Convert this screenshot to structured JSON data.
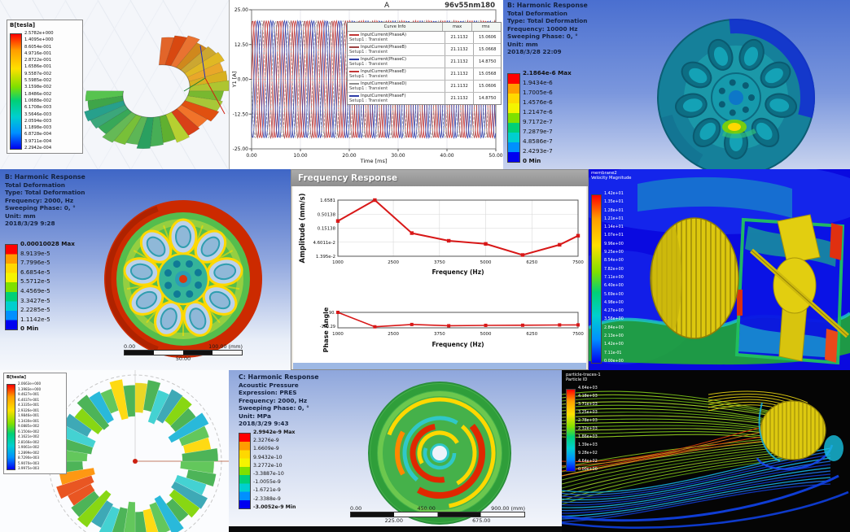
{
  "panels": {
    "maxwell_torus": {
      "legend_title": "B[tesla]",
      "legend_values": [
        "2.5782e+000",
        "1.4095e+000",
        "8.6054e-001",
        "4.9716e-001",
        "2.8722e-001",
        "1.6586e-001",
        "9.5587e-002",
        "5.5985e-002",
        "3.1598e-002",
        "1.8486e-002",
        "1.0688e-002",
        "6.1708e-003",
        "3.5646e-003",
        "2.0594e-003",
        "1.1898e-003",
        "6.8728e-004",
        "3.9711e-004",
        "2.2942e-004"
      ]
    },
    "transient_plot": {
      "title": "A",
      "subtitle": "96v55nm180",
      "xlabel": "Time [ms]",
      "ylabel": "Y1 [A]",
      "xtick_labels": [
        "0.00",
        "10.00",
        "20.00",
        "30.00",
        "40.00",
        "50.00"
      ],
      "ytick_labels": [
        "25.00",
        "12.50",
        "0.00",
        "-12.50",
        "-25.00"
      ],
      "legend": {
        "header": [
          "Curve Info",
          "max",
          "rms"
        ],
        "rows": [
          {
            "name": "InputCurrent(PhaseA)",
            "setup": "Setup1 : Transient",
            "max": "21.1132",
            "rms": "15.0606",
            "color": "#c23535",
            "dash": false
          },
          {
            "name": "InputCurrent(PhaseB)",
            "setup": "Setup1 : Transient",
            "max": "21.1132",
            "rms": "15.0668",
            "color": "#9e4444",
            "dash": false
          },
          {
            "name": "InputCurrent(PhaseC)",
            "setup": "Setup1 : Transient",
            "max": "21.1132",
            "rms": "14.8750",
            "color": "#2f3da8",
            "dash": false
          },
          {
            "name": "InputCurrent(PhaseE)",
            "setup": "Setup1 : Transient",
            "max": "21.1132",
            "rms": "15.0568",
            "color": "#c23535",
            "dash": false
          },
          {
            "name": "InputCurrent(PhaseD)",
            "setup": "Setup1 : Transient",
            "max": "21.1132",
            "rms": "15.0606",
            "color": "#909090",
            "dash": true
          },
          {
            "name": "InputCurrent(PhaseF)",
            "setup": "Setup1 : Transient",
            "max": "21.1132",
            "rms": "14.8750",
            "color": "#2f3da8",
            "dash": false
          }
        ]
      }
    },
    "harmonic_10000": {
      "info_lines": [
        "B: Harmonic Response",
        "Total Deformation",
        "Type: Total Deformation",
        "Frequency: 10000 Hz",
        "Sweeping Phase: 0, °",
        "Unit: mm",
        "2018/3/28 22:09"
      ],
      "legend_values": [
        "2.1864e-6 Max",
        "1.9434e-6",
        "1.7005e-6",
        "1.4576e-6",
        "1.2147e-6",
        "9.7172e-7",
        "7.2879e-7",
        "4.8586e-7",
        "2.4293e-7",
        "0 Min"
      ]
    },
    "harmonic_2000": {
      "info_lines": [
        "B: Harmonic Response",
        "Total Deformation",
        "Type: Total Deformation",
        "Frequency: 2000, Hz",
        "Sweeping Phase: 0, °",
        "Unit: mm",
        "2018/3/29 9:28"
      ],
      "legend_values": [
        "0.00010028 Max",
        "8.9139e-5",
        "7.7996e-5",
        "6.6854e-5",
        "5.5712e-5",
        "4.4569e-5",
        "3.3427e-5",
        "2.2285e-5",
        "1.1142e-5",
        "0 Min"
      ],
      "ruler": {
        "top": [
          "0.00",
          "100.00 (mm)"
        ],
        "mid": "50.00"
      }
    },
    "frequency_response": {
      "window_title": "Frequency Response",
      "amplitude": {
        "ylabel": "Amplitude (mm/s)",
        "ytick_labels": [
          "1.6581",
          "0.50138",
          "0.15138",
          "4.6011e-2",
          "1.395e-2"
        ],
        "xtick_labels": [
          "1000",
          "2500",
          "3750",
          "5000",
          "6250",
          "7500"
        ],
        "xlabel": "Frequency (Hz)"
      },
      "phase": {
        "ylabel": "Phase Angle",
        "ytick_labels": [
          "90.",
          "-150.29"
        ],
        "xtick_labels": [
          "1000",
          "2500",
          "3750",
          "5000",
          "6250",
          "7500"
        ],
        "xlabel": "Frequency (Hz)"
      }
    },
    "velocity_contour": {
      "title_lines": [
        "membrane2",
        "Velocity Magnitude"
      ],
      "legend_values": [
        "1.42e+01",
        "1.35e+01",
        "1.28e+01",
        "1.21e+01",
        "1.14e+01",
        "1.07e+01",
        "9.96e+00",
        "9.25e+00",
        "8.54e+00",
        "7.82e+00",
        "7.11e+00",
        "6.40e+00",
        "5.69e+00",
        "4.98e+00",
        "4.27e+00",
        "3.56e+00",
        "2.84e+00",
        "2.13e+00",
        "1.42e+00",
        "7.11e-01",
        "0.00e+00"
      ]
    },
    "maxwell_ring": {
      "legend_title": "B[tesla]",
      "legend_values": [
        "2.0663e+000",
        "1.3983e+000",
        "9.4627e-001",
        "6.4037e-001",
        "4.3335e-001",
        "2.9326e-001",
        "1.9846e-001",
        "1.3430e-001",
        "9.0885e-002",
        "6.1504e-002",
        "4.1621e-002",
        "2.8166e-002",
        "1.9061e-002",
        "1.2899e-002",
        "8.7290e-003",
        "5.9070e-003",
        "3.9975e-003"
      ]
    },
    "acoustic": {
      "info_lines": [
        "C: Harmonic Response",
        "Acoustic Pressure",
        "Expression: PRES",
        "Frequency: 2000, Hz",
        "Sweeping Phase: 0, °",
        "Unit: MPa",
        "2018/3/29 9:43"
      ],
      "legend_values": [
        "2.9942e-9 Max",
        "2.3276e-9",
        "1.6609e-9",
        "9.9432e-10",
        "3.2772e-10",
        "-3.3887e-10",
        "-1.0055e-9",
        "-1.6721e-9",
        "-2.3388e-9",
        "-3.0052e-9 Min"
      ],
      "ruler": {
        "top": [
          "0.00",
          "450.00",
          "900.00 (mm)"
        ],
        "bottom": [
          "225.00",
          "675.00"
        ]
      }
    },
    "particle_tracks": {
      "title_lines": [
        "particle-traces-1",
        "Particle ID"
      ],
      "legend_values": [
        "4.64e+03",
        "4.18e+03",
        "3.71e+03",
        "3.25e+03",
        "2.78e+03",
        "2.32e+03",
        "1.86e+03",
        "1.39e+03",
        "9.28e+02",
        "4.64e+02",
        "0.00e+00"
      ]
    }
  },
  "chart_data": [
    {
      "id": "transient",
      "type": "line",
      "title": "A",
      "subtitle": "96v55nm180",
      "xlabel": "Time [ms]",
      "ylabel": "Y1 [A]",
      "xlim": [
        0,
        50
      ],
      "ylim": [
        -25,
        25
      ],
      "xticks": [
        0,
        10,
        20,
        30,
        40,
        50
      ],
      "yticks": [
        25,
        12.5,
        0,
        -12.5,
        -25
      ],
      "amplitude": 21.1132,
      "period_ms": 2.7778,
      "series": [
        {
          "name": "InputCurrent(PhaseA)",
          "phase_deg": 0,
          "max": 21.1132,
          "rms": 15.0606
        },
        {
          "name": "InputCurrent(PhaseB)",
          "phase_deg": 120,
          "max": 21.1132,
          "rms": 15.0668
        },
        {
          "name": "InputCurrent(PhaseC)",
          "phase_deg": 240,
          "max": 21.1132,
          "rms": 14.875
        },
        {
          "name": "InputCurrent(PhaseE)",
          "phase_deg": 60,
          "max": 21.1132,
          "rms": 15.0568
        },
        {
          "name": "InputCurrent(PhaseD)",
          "phase_deg": 180,
          "max": 21.1132,
          "rms": 15.0606
        },
        {
          "name": "InputCurrent(PhaseF)",
          "phase_deg": 300,
          "max": 21.1132,
          "rms": 14.875
        }
      ]
    },
    {
      "id": "freq_amplitude",
      "type": "line",
      "yscale": "log",
      "ylabel": "Amplitude (mm/s)",
      "xlabel": "Frequency (Hz)",
      "xlim": [
        1000,
        7500
      ],
      "xticks": [
        1000,
        2500,
        3750,
        5000,
        6250,
        7500
      ],
      "yticks": [
        1.6581,
        0.50138,
        0.15138,
        0.046011,
        0.01395
      ],
      "x": [
        1000,
        2000,
        3000,
        4000,
        5000,
        6000,
        7000,
        7500
      ],
      "y": [
        0.28,
        1.6581,
        0.1,
        0.052,
        0.04,
        0.0155,
        0.037,
        0.08
      ],
      "line_color": "#d81818"
    },
    {
      "id": "freq_phase",
      "type": "line",
      "ylabel": "Phase Angle",
      "xlabel": "Frequency (Hz)",
      "xlim": [
        1000,
        7500
      ],
      "xticks": [
        1000,
        2500,
        3750,
        5000,
        6250,
        7500
      ],
      "yticks": [
        90,
        -150.29
      ],
      "x": [
        1000,
        2000,
        3000,
        4000,
        5000,
        6000,
        7000,
        7500
      ],
      "y": [
        90,
        -160,
        -120,
        -142,
        -135,
        -133,
        -128,
        -127
      ],
      "line_color": "#d81818"
    }
  ]
}
